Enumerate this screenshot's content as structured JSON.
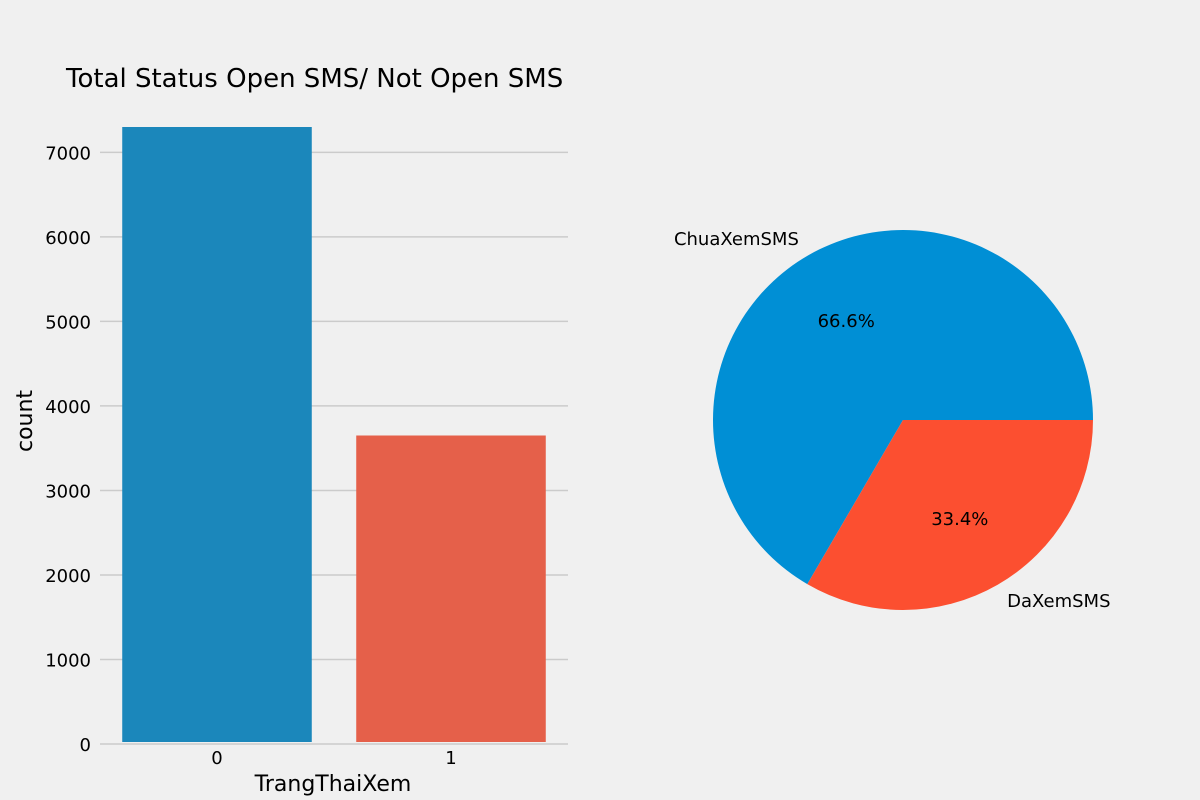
{
  "chart_data": [
    {
      "type": "bar",
      "title": "Total Status Open SMS/ Not Open SMS",
      "xlabel": "TrangThaiXem",
      "ylabel": "count",
      "categories": [
        "0",
        "1"
      ],
      "values": [
        7300,
        3650
      ],
      "ylim": [
        0,
        7300
      ],
      "yticks": [
        0,
        1000,
        2000,
        3000,
        4000,
        5000,
        6000,
        7000
      ],
      "grid": true,
      "colors": [
        "#1b87bb",
        "#e5604a"
      ]
    },
    {
      "type": "pie",
      "labels": [
        "ChuaXemSMS",
        "DaXemSMS"
      ],
      "values": [
        66.6,
        33.4
      ],
      "pct_labels": [
        "66.6%",
        "33.4%"
      ],
      "colors": [
        "#008fd5",
        "#fc4f30"
      ]
    }
  ]
}
